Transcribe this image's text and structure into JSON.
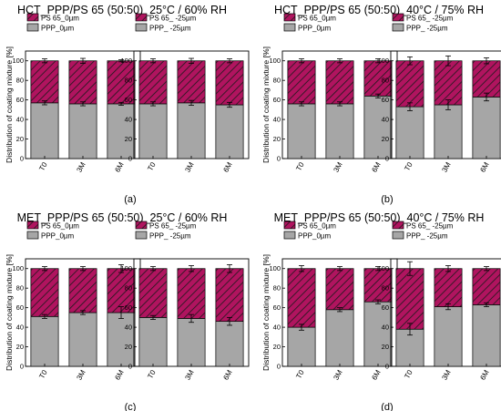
{
  "colors": {
    "ps_fill": "#b0145f",
    "ppp_fill": "#a6a6a6",
    "hatch": "#1a1a1a",
    "axis": "#000000"
  },
  "chart_data": [
    {
      "type": "bar",
      "stacked": true,
      "title": "HCT_PPP/PS 65 (50:50)_25°C / 60% RH",
      "label": "(a)",
      "ylabel": "Distribution of coating mixture [%]",
      "ylim": [
        0,
        110
      ],
      "yticks": [
        0,
        20,
        40,
        60,
        80,
        100
      ],
      "categories": [
        "T0",
        "3M",
        "6M"
      ],
      "subplots": [
        {
          "legend": [
            "PS 65_0µm",
            "PPP_0µm"
          ],
          "series": [
            {
              "name": "PPP_0µm",
              "values": [
                57,
                56,
                56
              ],
              "errors": [
                2,
                2,
                1.5
              ]
            },
            {
              "name": "PS 65_0µm",
              "values": [
                43,
                44,
                44
              ],
              "errors": [
                2,
                2.5,
                1
              ]
            }
          ]
        },
        {
          "legend": [
            "PS 65_ -25µm",
            "PPP_ -25µm"
          ],
          "series": [
            {
              "name": "PPP_ -25µm",
              "values": [
                56,
                57,
                55
              ],
              "errors": [
                2,
                2.5,
                2.5
              ]
            },
            {
              "name": "PS 65_ -25µm",
              "values": [
                44,
                43,
                45
              ],
              "errors": [
                2,
                2.5,
                2
              ]
            }
          ]
        }
      ]
    },
    {
      "type": "bar",
      "stacked": true,
      "title": "HCT_PPP/PS 65 (50:50)_40°C /  75% RH",
      "label": "(b)",
      "ylabel": "Distribution of coating mixture [%]",
      "ylim": [
        0,
        110
      ],
      "yticks": [
        0,
        20,
        40,
        60,
        80,
        100
      ],
      "categories": [
        "T0",
        "3M",
        "6M"
      ],
      "subplots": [
        {
          "legend": [
            "PS 65_0µm",
            "PPP_0µm"
          ],
          "series": [
            {
              "name": "PPP_0µm",
              "values": [
                56,
                56,
                64
              ],
              "errors": [
                2,
                2,
                2
              ]
            },
            {
              "name": "PS 65_0µm",
              "values": [
                44,
                44,
                36
              ],
              "errors": [
                2,
                2,
                2
              ]
            }
          ]
        },
        {
          "legend": [
            "PS 65_ -25µm",
            "PPP_ -25µm"
          ],
          "series": [
            {
              "name": "PPP_ -25µm",
              "values": [
                53,
                55,
                63
              ],
              "errors": [
                4,
                5,
                4
              ]
            },
            {
              "name": "PS 65_ -25µm",
              "values": [
                47,
                45,
                37
              ],
              "errors": [
                4,
                5,
                3
              ]
            }
          ]
        }
      ]
    },
    {
      "type": "bar",
      "stacked": true,
      "title": "MET_PPP/PS 65 (50:50)_25°C / 60% RH",
      "label": "(c)",
      "ylabel": "Distribution of coating mixture [%]",
      "ylim": [
        0,
        110
      ],
      "yticks": [
        0,
        20,
        40,
        60,
        80,
        100
      ],
      "categories": [
        "T0",
        "3M",
        "6M"
      ],
      "subplots": [
        {
          "legend": [
            "PS 65_0µm",
            "PPP_0µm"
          ],
          "series": [
            {
              "name": "PPP_0µm",
              "values": [
                51,
                55,
                55
              ],
              "errors": [
                2,
                2,
                6
              ]
            },
            {
              "name": "PS 65_0µm",
              "values": [
                49,
                45,
                45
              ],
              "errors": [
                2,
                2,
                4
              ]
            }
          ]
        },
        {
          "legend": [
            "PS 65_ -25µm",
            "PPP_ -25µm"
          ],
          "series": [
            {
              "name": "PPP_ -25µm",
              "values": [
                50,
                49,
                46
              ],
              "errors": [
                2,
                4,
                4
              ]
            },
            {
              "name": "PS 65_ -25µm",
              "values": [
                50,
                51,
                54
              ],
              "errors": [
                2,
                3,
                4
              ]
            }
          ]
        }
      ]
    },
    {
      "type": "bar",
      "stacked": true,
      "title": "MET_PPP/PS 65 (50:50)_40°C /  75% RH",
      "label": "(d)",
      "ylabel": "Distribution of coating mixture [%]",
      "ylim": [
        0,
        110
      ],
      "yticks": [
        0,
        20,
        40,
        60,
        80,
        100
      ],
      "categories": [
        "T0",
        "3M",
        "6M"
      ],
      "subplots": [
        {
          "legend": [
            "PS 65_0µm",
            "PPP_0µm"
          ],
          "series": [
            {
              "name": "PPP_0µm",
              "values": [
                40,
                58,
                66
              ],
              "errors": [
                3,
                2,
                2
              ]
            },
            {
              "name": "PS 65_0µm",
              "values": [
                60,
                42,
                34
              ],
              "errors": [
                3,
                2,
                2
              ]
            }
          ]
        },
        {
          "legend": [
            "PS 65_ -25µm",
            "PPP_ -25µm"
          ],
          "series": [
            {
              "name": "PPP_ -25µm",
              "values": [
                38,
                61,
                63
              ],
              "errors": [
                6,
                3,
                2
              ]
            },
            {
              "name": "PS 65_ -25µm",
              "values": [
                62,
                39,
                37
              ],
              "errors": [
                7,
                3,
                2
              ]
            }
          ]
        }
      ]
    }
  ]
}
